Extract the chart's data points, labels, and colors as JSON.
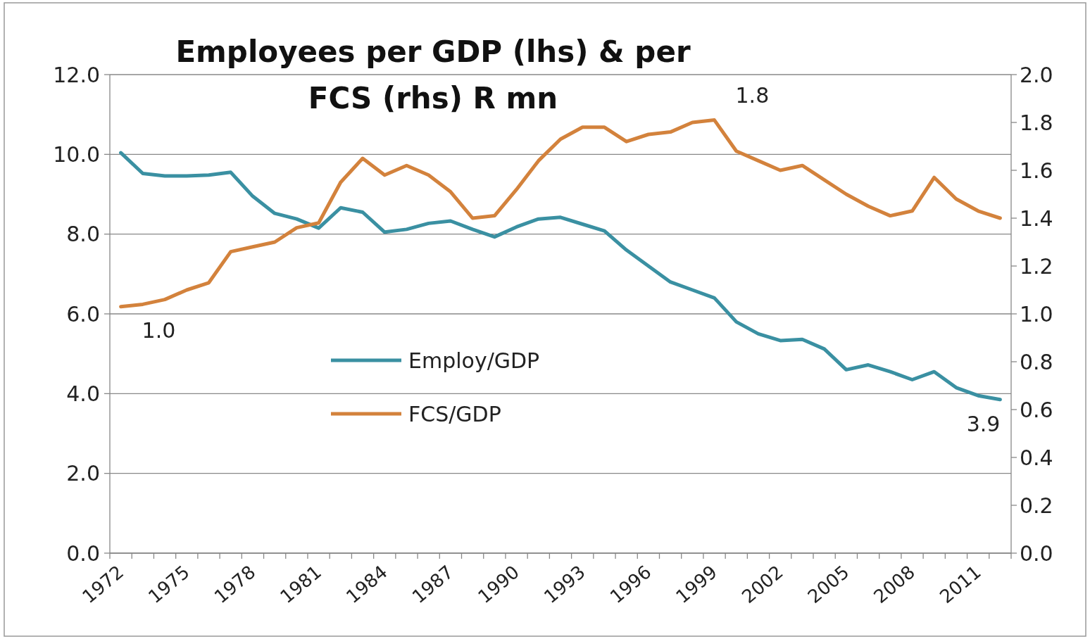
{
  "chart_data": {
    "type": "line",
    "title": "Employees per GDP (lhs) & per FCS (rhs) R mn",
    "categories": [
      "1972",
      null,
      null,
      "1975",
      null,
      null,
      "1978",
      null,
      null,
      "1981",
      null,
      null,
      "1984",
      null,
      null,
      "1987",
      null,
      null,
      "1990",
      null,
      null,
      "1993",
      null,
      null,
      "1996",
      null,
      null,
      "1999",
      null,
      null,
      "2002",
      null,
      null,
      "2005",
      null,
      null,
      "2008",
      null,
      null,
      "2011",
      null
    ],
    "series": [
      {
        "name": "Employ/GDP",
        "color": "#3a90a2",
        "values": [
          10.04,
          9.52,
          9.46,
          9.46,
          9.48,
          9.55,
          8.95,
          8.52,
          8.38,
          8.15,
          8.66,
          8.55,
          8.05,
          8.12,
          8.27,
          8.33,
          8.12,
          7.93,
          8.18,
          8.38,
          8.42,
          8.25,
          8.08,
          7.6,
          7.2,
          6.8,
          6.6,
          6.4,
          5.8,
          5.5,
          5.33,
          5.36,
          5.12,
          4.6,
          4.72,
          4.55,
          4.35,
          4.55,
          4.15,
          3.95,
          3.85
        ]
      },
      {
        "name": "FCS/GDP",
        "color": "#d3823c",
        "axis": "y2",
        "values": [
          1.03,
          1.04,
          1.06,
          1.1,
          1.13,
          1.26,
          1.28,
          1.3,
          1.36,
          1.38,
          1.55,
          1.65,
          1.58,
          1.62,
          1.58,
          1.51,
          1.4,
          1.41,
          1.52,
          1.64,
          1.73,
          1.78,
          1.78,
          1.72,
          1.75,
          1.76,
          1.8,
          1.81,
          1.68,
          1.64,
          1.6,
          1.62,
          1.56,
          1.5,
          1.45,
          1.41,
          1.43,
          1.57,
          1.48,
          1.43,
          1.4
        ]
      }
    ],
    "ylim": [
      0,
      12
    ],
    "yticks": [
      {
        "value": 0,
        "label": "0.0"
      },
      {
        "value": 2,
        "label": "2.0"
      },
      {
        "value": 4,
        "label": "4.0"
      },
      {
        "value": 6,
        "label": "6.0"
      },
      {
        "value": 8,
        "label": "8.0"
      },
      {
        "value": 10,
        "label": "10.0"
      },
      {
        "value": 12,
        "label": "12.0"
      }
    ],
    "y2lim": [
      0,
      2
    ],
    "y2ticks": [
      {
        "value": 0,
        "label": "0.0"
      },
      {
        "value": 0.2,
        "label": "0.2"
      },
      {
        "value": 0.4,
        "label": "0.4"
      },
      {
        "value": 0.6,
        "label": "0.6"
      },
      {
        "value": 0.8,
        "label": "0.8"
      },
      {
        "value": 1,
        "label": "1.0"
      },
      {
        "value": 1.2,
        "label": "1.2"
      },
      {
        "value": 1.4,
        "label": "1.4"
      },
      {
        "value": 1.6,
        "label": "1.6"
      },
      {
        "value": 1.8,
        "label": "1.8"
      },
      {
        "value": 2,
        "label": "2.0"
      }
    ],
    "annotations": [
      {
        "text": "1.0",
        "x": "1972",
        "y": 6.2
      },
      {
        "text": "1.8",
        "x": "1999",
        "y": 10.9
      },
      {
        "text": "3.9",
        "y": 3.85
      }
    ],
    "grid": "y",
    "legend": "center",
    "line_style": "solid",
    "marker": "none"
  }
}
